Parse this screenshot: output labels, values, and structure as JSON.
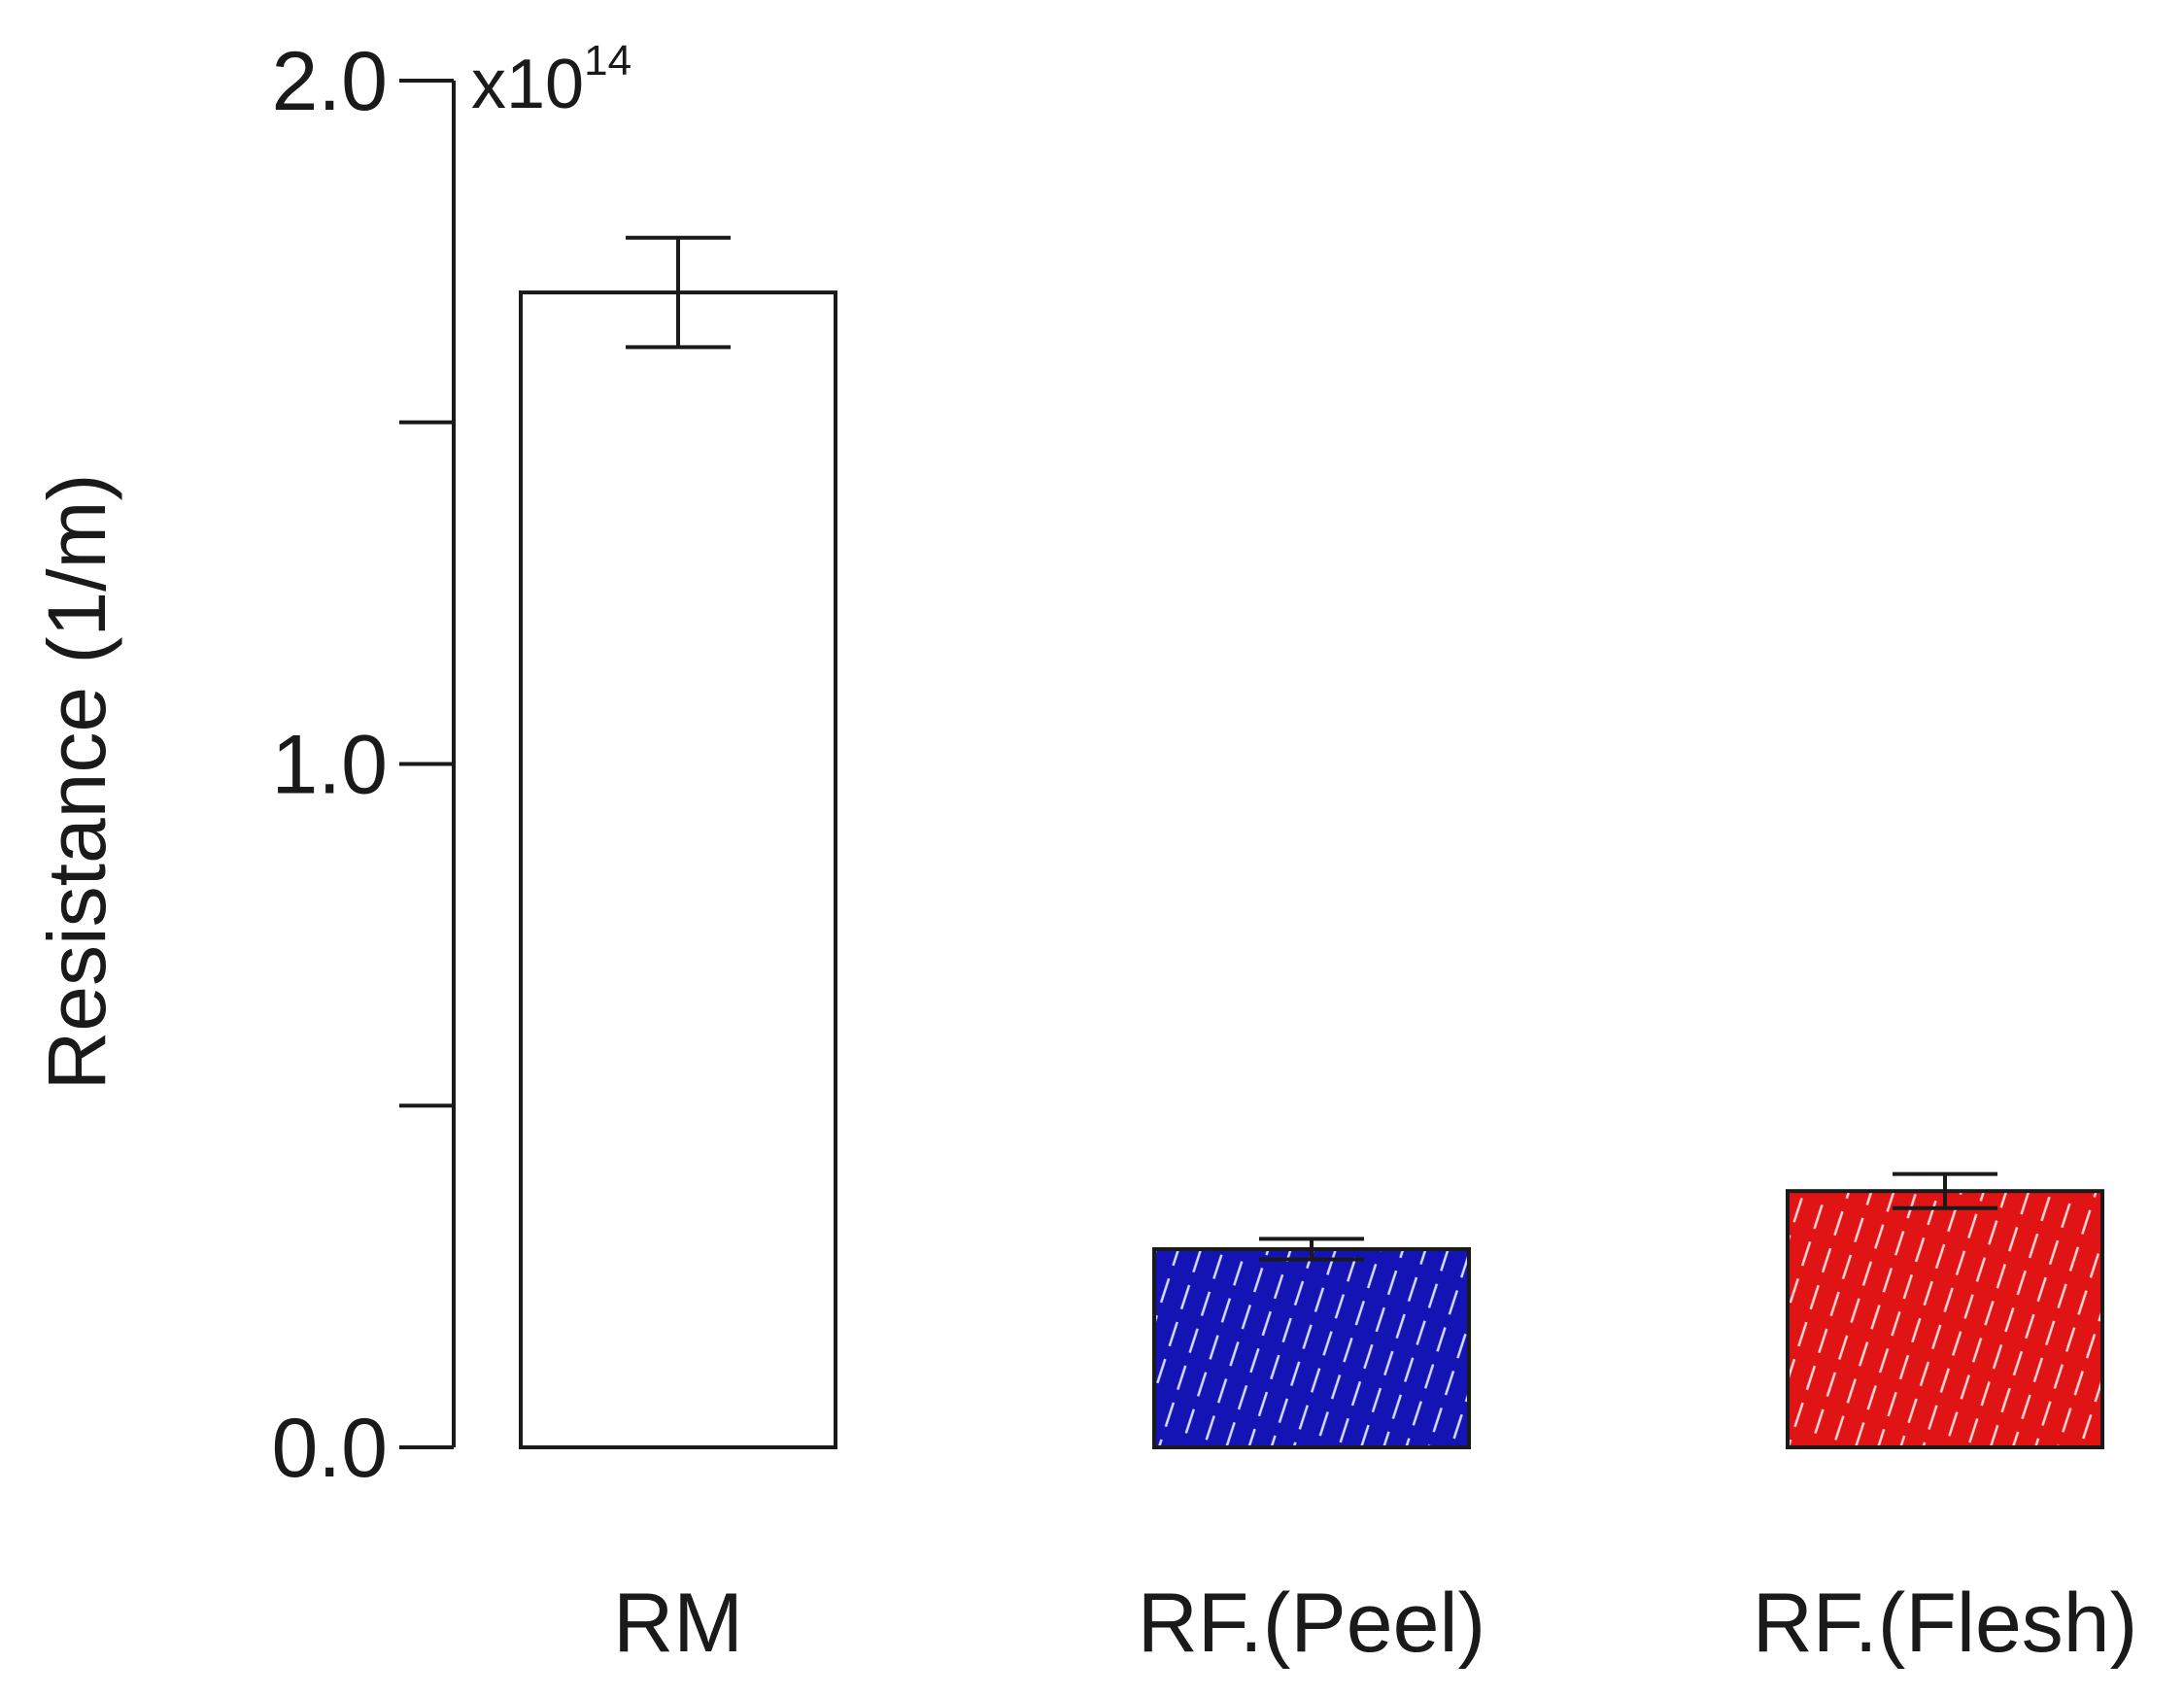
{
  "chart_data": {
    "type": "bar",
    "categories": [
      "RM",
      "RF.(Peel)",
      "RF.(Flesh)"
    ],
    "values": [
      1.69,
      0.29,
      0.375
    ],
    "errors": [
      0.08,
      0.015,
      0.025
    ],
    "colors": [
      "#ffffff",
      "#1414b4",
      "#e01414"
    ],
    "patterns": [
      "none",
      "dashed-diagonal",
      "dashed-diagonal"
    ],
    "ylabel": "Resistance (1/m)",
    "ylim": [
      0,
      2
    ],
    "yticks_major": [
      0,
      1,
      2
    ],
    "yticks_minor": [
      0.5,
      1.5
    ],
    "ytick_labels": [
      "0.0",
      "1.0",
      "2.0"
    ],
    "multiplier": {
      "base": "x10",
      "exponent": "14"
    },
    "grid": false,
    "legend": "none"
  }
}
